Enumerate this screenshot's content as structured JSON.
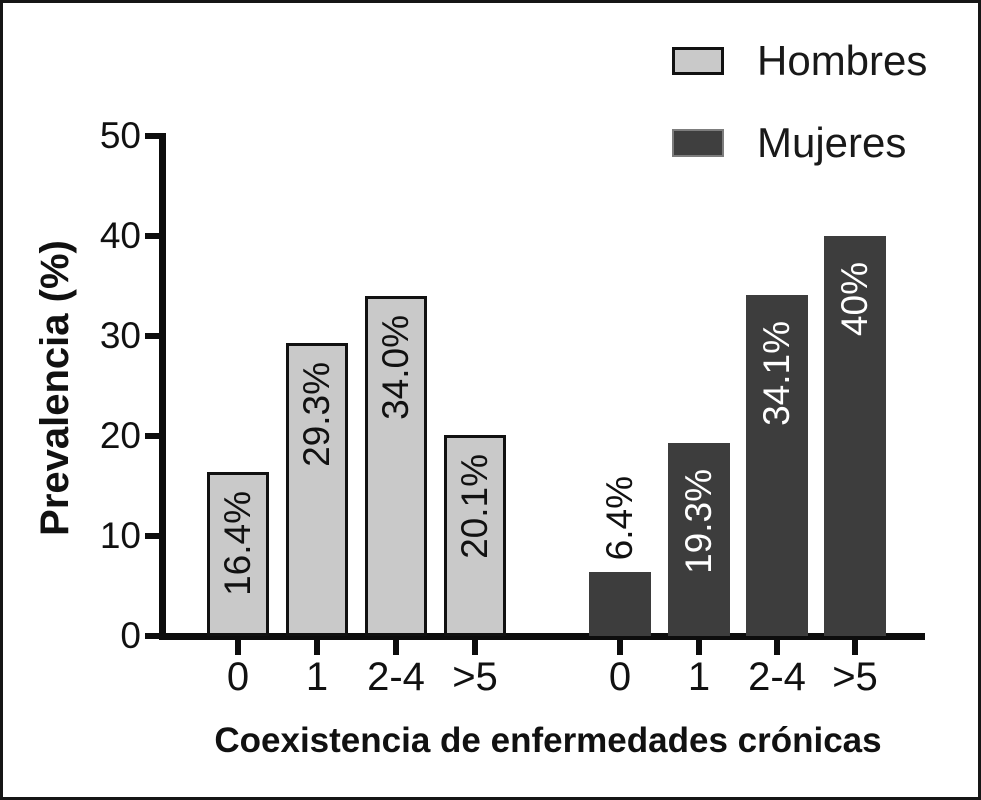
{
  "figure": {
    "background": "#ffffff",
    "frame_color": "#161616"
  },
  "legend": {
    "items": [
      {
        "label": "Hombres",
        "swatch_color": "#c9c9c9",
        "swatch_border": "#111111"
      },
      {
        "label": "Mujeres",
        "swatch_color": "#3f3f3f",
        "swatch_border": "#7d7d7d"
      }
    ]
  },
  "chart_data": {
    "type": "bar",
    "title": "",
    "xlabel": "Coexistencia de enfermedades crónicas",
    "ylabel": "Prevalencia (%)",
    "ylim": [
      0,
      50
    ],
    "yticks": [
      0,
      10,
      20,
      30,
      40,
      50
    ],
    "categories": [
      "0",
      "1",
      "2-4",
      ">5"
    ],
    "grid": false,
    "legend_position": "top-right",
    "series": [
      {
        "name": "Hombres",
        "values": [
          16.4,
          29.3,
          34.0,
          20.1
        ],
        "labels": [
          "16.4%",
          "29.3%",
          "34.0%",
          "20.1%"
        ],
        "color": "#c9c9c9",
        "bar_border": "#111111",
        "label_colors": [
          "#111111",
          "#111111",
          "#111111",
          "#111111"
        ],
        "label_placement": [
          "inside",
          "inside",
          "inside",
          "inside"
        ]
      },
      {
        "name": "Mujeres",
        "values": [
          6.4,
          19.3,
          34.1,
          40
        ],
        "labels": [
          "6.4%",
          "19.3%",
          "34.1%",
          "40%"
        ],
        "color": "#3d3d3d",
        "bar_border": null,
        "label_colors": [
          "#111111",
          "#ffffff",
          "#ffffff",
          "#ffffff"
        ],
        "label_placement": [
          "above",
          "inside",
          "inside",
          "inside"
        ]
      }
    ]
  }
}
